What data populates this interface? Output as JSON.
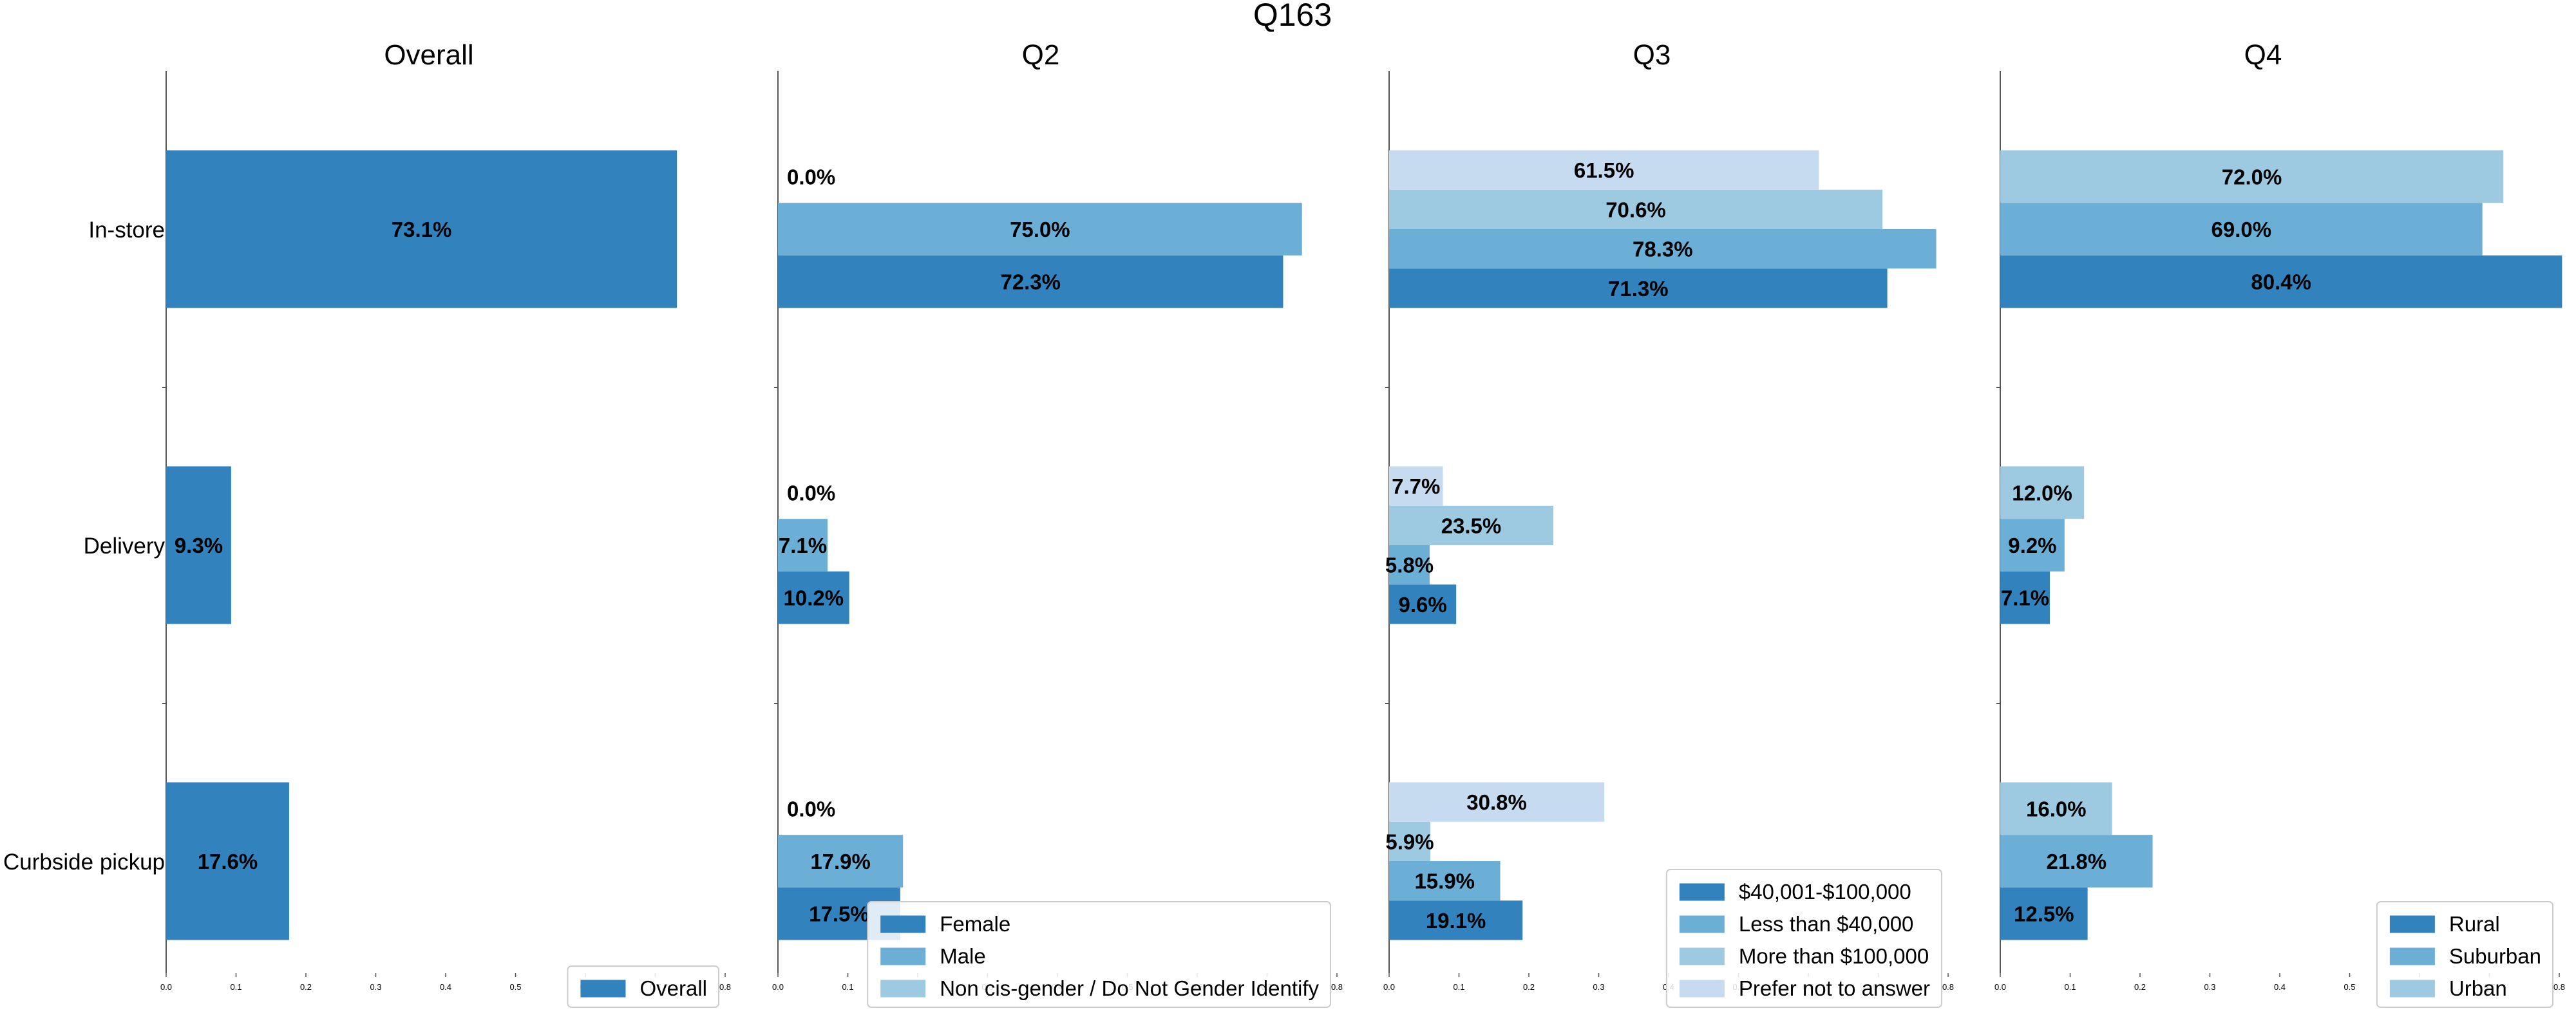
{
  "title": "Q163",
  "colors": {
    "c1": "#3182bd",
    "c2": "#6baed6",
    "c3": "#9ecae1",
    "c4": "#c6dbef",
    "axis": "#555555",
    "text": "#000000",
    "legend_border": "#cccccc"
  },
  "chart_data": [
    {
      "type": "bar",
      "orientation": "horizontal",
      "title": "Overall",
      "categories": [
        "In-store",
        "Delivery",
        "Curbside pickup"
      ],
      "xlim": [
        0,
        0.8
      ],
      "xticks": [
        "0.0",
        "0.1",
        "0.2",
        "0.3",
        "0.4",
        "0.5",
        "0.6",
        "0.7",
        "0.8"
      ],
      "legend_position": "bottom-right",
      "series": [
        {
          "name": "Overall",
          "values": [
            0.731,
            0.093,
            0.176
          ],
          "labels": [
            "73.1%",
            "9.3%",
            "17.6%"
          ]
        }
      ]
    },
    {
      "type": "bar",
      "orientation": "horizontal",
      "title": "Q2",
      "categories": [
        "In-store",
        "Delivery",
        "Curbside pickup"
      ],
      "xlim": [
        0,
        0.8
      ],
      "xticks": [
        "0.0",
        "0.1",
        "0.2",
        "0.3",
        "0.4",
        "0.5",
        "0.6",
        "0.7",
        "0.8"
      ],
      "legend_position": "bottom-right",
      "series": [
        {
          "name": "Female",
          "values": [
            0.723,
            0.102,
            0.175
          ],
          "labels": [
            "72.3%",
            "10.2%",
            "17.5%"
          ]
        },
        {
          "name": "Male",
          "values": [
            0.75,
            0.071,
            0.179
          ],
          "labels": [
            "75.0%",
            "7.1%",
            "17.9%"
          ]
        },
        {
          "name": "Non cis-gender / Do Not Gender Identify",
          "values": [
            0.0,
            0.0,
            0.0
          ],
          "labels": [
            "0.0%",
            "0.0%",
            "0.0%"
          ]
        }
      ]
    },
    {
      "type": "bar",
      "orientation": "horizontal",
      "title": "Q3",
      "categories": [
        "In-store",
        "Delivery",
        "Curbside pickup"
      ],
      "xlim": [
        0,
        0.8
      ],
      "xticks": [
        "0.0",
        "0.1",
        "0.2",
        "0.3",
        "0.4",
        "0.5",
        "0.6",
        "0.7",
        "0.8"
      ],
      "legend_position": "bottom-right",
      "series": [
        {
          "name": "$40,001-$100,000",
          "values": [
            0.713,
            0.096,
            0.191
          ],
          "labels": [
            "71.3%",
            "9.6%",
            "19.1%"
          ]
        },
        {
          "name": "Less than $40,000",
          "values": [
            0.783,
            0.058,
            0.159
          ],
          "labels": [
            "78.3%",
            "5.8%",
            "15.9%"
          ]
        },
        {
          "name": "More than $100,000",
          "values": [
            0.706,
            0.235,
            0.059
          ],
          "labels": [
            "70.6%",
            "23.5%",
            "5.9%"
          ]
        },
        {
          "name": "Prefer not to answer",
          "values": [
            0.615,
            0.077,
            0.308
          ],
          "labels": [
            "61.5%",
            "7.7%",
            "30.8%"
          ]
        }
      ]
    },
    {
      "type": "bar",
      "orientation": "horizontal",
      "title": "Q4",
      "categories": [
        "In-store",
        "Delivery",
        "Curbside pickup"
      ],
      "xlim": [
        0,
        0.8
      ],
      "xticks": [
        "0.0",
        "0.1",
        "0.2",
        "0.3",
        "0.4",
        "0.5",
        "0.6",
        "0.7",
        "0.8"
      ],
      "legend_position": "bottom-right",
      "series": [
        {
          "name": "Rural",
          "values": [
            0.804,
            0.071,
            0.125
          ],
          "labels": [
            "80.4%",
            "7.1%",
            "12.5%"
          ]
        },
        {
          "name": "Suburban",
          "values": [
            0.69,
            0.092,
            0.218
          ],
          "labels": [
            "69.0%",
            "9.2%",
            "21.8%"
          ]
        },
        {
          "name": "Urban",
          "values": [
            0.72,
            0.12,
            0.16
          ],
          "labels": [
            "72.0%",
            "12.0%",
            "16.0%"
          ]
        }
      ]
    }
  ]
}
